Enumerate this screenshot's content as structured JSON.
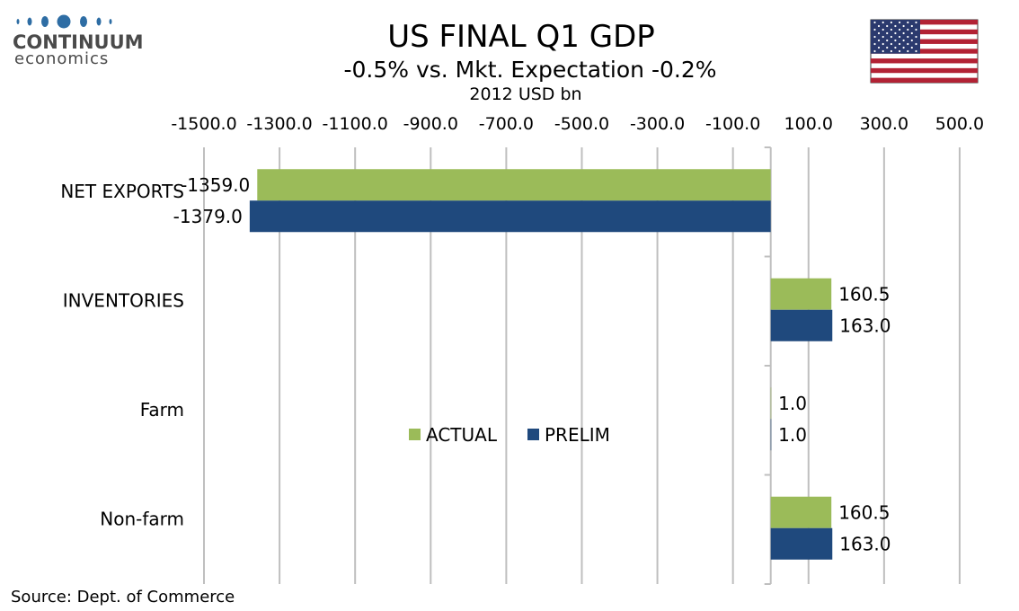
{
  "logo": {
    "line1": "CONTINUUM",
    "line2": "economics",
    "accent": "#2e6da4"
  },
  "flag_icon": "us-flag-icon",
  "chart_data": {
    "type": "bar",
    "orientation": "horizontal",
    "title": "US FINAL Q1 GDP",
    "subtitle": "-0.5% vs. Mkt. Expectation -0.2%",
    "unit_label": "2012 USD bn",
    "xlim": [
      -1500,
      600
    ],
    "x_ticks": [
      -1500,
      -1300,
      -1100,
      -900,
      -700,
      -500,
      -300,
      -100,
      100,
      300,
      500
    ],
    "x_tick_labels": [
      "-1500.0",
      "-1300.0",
      "-1100.0",
      "-900.0",
      "-700.0",
      "-500.0",
      "-300.0",
      "-100.0",
      "100.0",
      "300.0",
      "500.0"
    ],
    "grid": true,
    "categories": [
      "NET EXPORTS",
      "INVENTORIES",
      "Farm",
      "Non-farm"
    ],
    "series": [
      {
        "name": "ACTUAL",
        "color": "#9bbb59",
        "values": [
          -1359.0,
          160.5,
          1.0,
          160.5
        ],
        "labels": [
          "-1359.0",
          "160.5",
          "1.0",
          "160.5"
        ]
      },
      {
        "name": "PRELIM",
        "color": "#1f497d",
        "values": [
          -1379.0,
          163.0,
          1.0,
          163.0
        ],
        "labels": [
          "-1379.0",
          "163.0",
          "1.0",
          "163.0"
        ]
      }
    ],
    "legend_position": "center"
  },
  "source": "Source: Dept. of Commerce"
}
